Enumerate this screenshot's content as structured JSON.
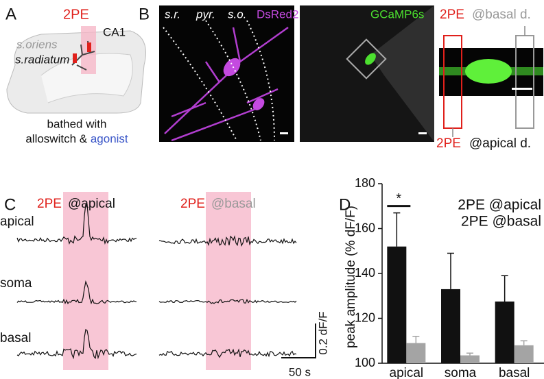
{
  "panels": {
    "A": {
      "label": "A",
      "title": "2PE",
      "region": "CA1",
      "layer_top": "s.oriens",
      "layer_bottom": "s.radiatum",
      "caption_line1": "bathed with",
      "caption_part1": "alloswitch & ",
      "caption_part2": "agonist"
    },
    "B": {
      "label": "B",
      "layers": [
        "s.r.",
        "pyr.",
        "s.o."
      ],
      "stain1": "DsRed2",
      "stain2": "GCaMP6s",
      "top_tag": "2PE",
      "top_site": "@basal d.",
      "bottom_tag": "2PE",
      "bottom_site": "@apical d."
    },
    "C": {
      "label": "C",
      "left_tag": "2PE",
      "left_site": "@apical",
      "right_tag": "2PE",
      "right_site": "@basal",
      "rows": [
        "apical",
        "soma",
        "basal"
      ],
      "scale_y": "0.2 dF/F",
      "scale_x": "50 s"
    },
    "D": {
      "label": "D"
    }
  },
  "chart_data": {
    "type": "bar",
    "y_label": "peak amplitude (% dF/F)",
    "categories": [
      "apical",
      "soma",
      "basal"
    ],
    "series": [
      {
        "name": "2PE @apical",
        "color": "#111111",
        "values": [
          152,
          133,
          127.5
        ],
        "errors": [
          15,
          16,
          11.5
        ]
      },
      {
        "name": "2PE @basal",
        "color": "#a4a4a4",
        "values": [
          109,
          103.5,
          108
        ],
        "errors": [
          3,
          1,
          2
        ]
      }
    ],
    "ylim": [
      100,
      180
    ],
    "yticks": [
      100,
      120,
      140,
      160,
      180
    ],
    "annotation": "*",
    "legend": "upper right"
  }
}
